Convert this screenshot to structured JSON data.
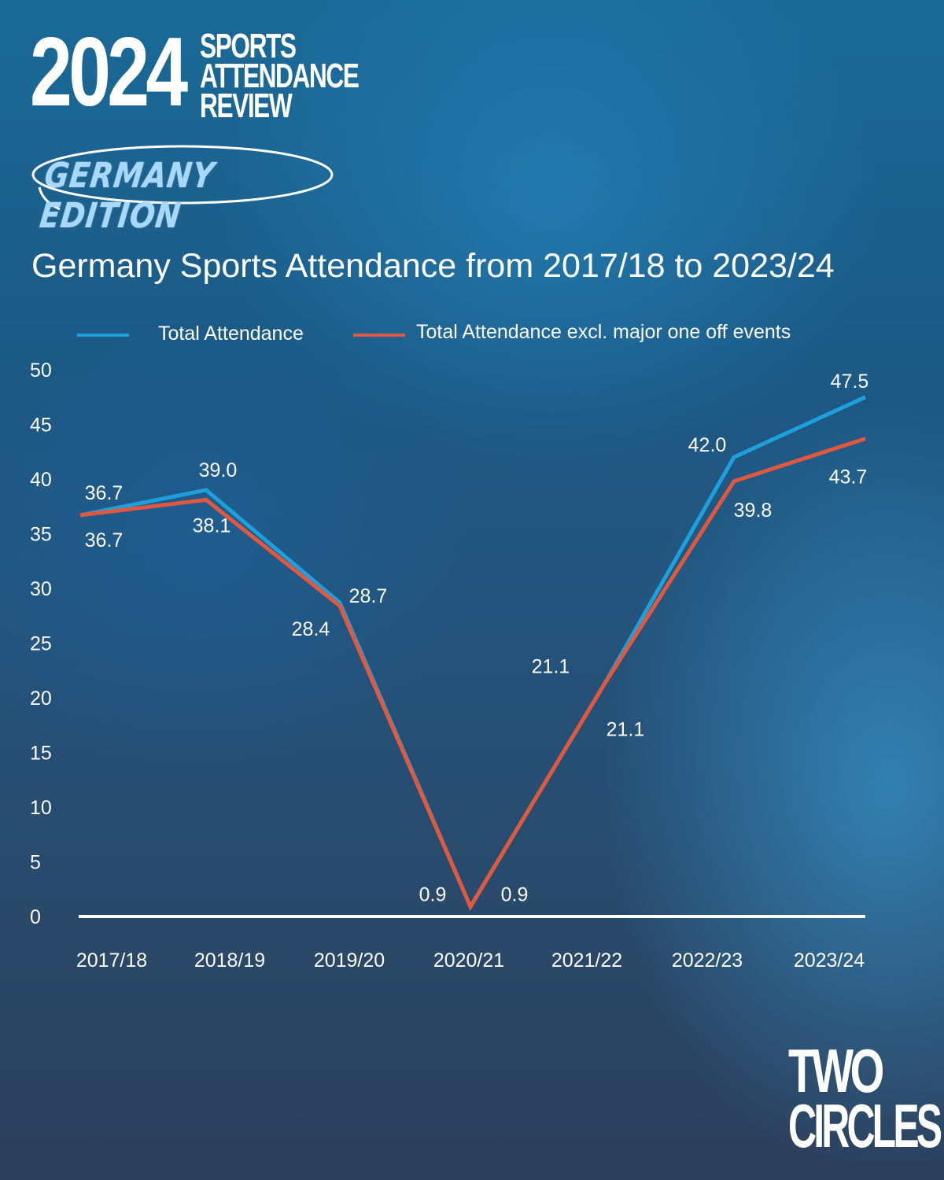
{
  "brand": {
    "year": "2024",
    "line1": "SPORTS",
    "line2": "ATTENDANCE",
    "line3": "REVIEW",
    "edition": "GERMANY EDITION"
  },
  "logo": {
    "line1": "TWO",
    "line2": "CIRCLES"
  },
  "colors": {
    "series1": "#1ea0dc",
    "series2": "#e2583e",
    "axis": "#ffffff"
  },
  "chart_data": {
    "type": "line",
    "title": "Germany Sports Attendance from 2017/18 to 2023/24",
    "xlabel": "",
    "ylabel": "",
    "ylim": [
      0,
      50
    ],
    "yticks": [
      "0",
      "5",
      "10",
      "15",
      "20",
      "25",
      "30",
      "35",
      "40",
      "45",
      "50"
    ],
    "categories": [
      "2017/18",
      "2018/19",
      "2019/20",
      "2020/21",
      "2021/22",
      "2022/23",
      "2023/24"
    ],
    "legend_position": "top",
    "series": [
      {
        "name": "Total Attendance",
        "values": [
          36.7,
          39.0,
          28.7,
          0.9,
          21.1,
          42.0,
          47.5
        ],
        "labels": [
          "36.7",
          "39.0",
          "28.7",
          "0.9",
          "21.1",
          "42.0",
          "47.5"
        ]
      },
      {
        "name": "Total Attendance excl. major one off events",
        "values": [
          36.7,
          38.1,
          28.4,
          0.9,
          21.1,
          39.8,
          43.7
        ],
        "labels": [
          "36.7",
          "38.1",
          "28.4",
          "0.9",
          "21.1",
          "39.8",
          "43.7"
        ]
      }
    ]
  }
}
